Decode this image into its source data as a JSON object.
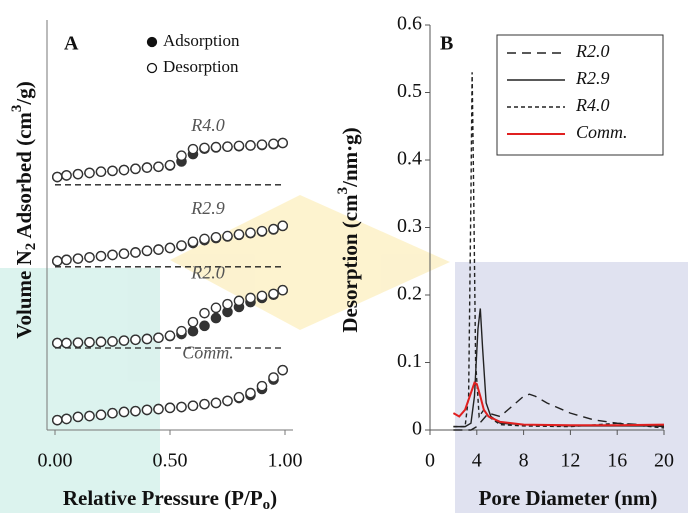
{
  "chart_data": [
    {
      "type": "scatter",
      "title": "A",
      "y_label": [
        "Volume N",
        "2",
        " Adsorbed (cm",
        "3",
        "/g)"
      ],
      "x_label": [
        "Relative Pressure (P/P",
        "o",
        ")"
      ],
      "xlim": [
        0,
        1
      ],
      "ylim": [
        0,
        100
      ],
      "xticks": [
        {
          "value": 0,
          "label": "0.00"
        },
        {
          "value": 0.5,
          "label": "0.50"
        },
        {
          "value": 1,
          "label": "1.00"
        }
      ],
      "legend": [
        "Adsorption",
        "Desorption"
      ],
      "x": [
        0.01,
        0.05,
        0.1,
        0.15,
        0.2,
        0.25,
        0.3,
        0.35,
        0.4,
        0.45,
        0.5,
        0.55,
        0.6,
        0.65,
        0.7,
        0.75,
        0.8,
        0.85,
        0.9,
        0.95,
        0.99
      ],
      "series": [
        {
          "name": "R4.0",
          "baseline": 59.8,
          "adsorption": [
            61.7,
            62.1,
            62.4,
            62.7,
            63,
            63.2,
            63.4,
            63.7,
            64,
            64.2,
            64.5,
            65.5,
            67.3,
            68.6,
            68.9,
            69.1,
            69.2,
            69.4,
            69.5,
            69.7,
            70
          ],
          "desorption": [
            61.7,
            62.1,
            62.4,
            62.7,
            63,
            63.2,
            63.4,
            63.7,
            64,
            64.2,
            64.6,
            66.9,
            68.5,
            68.8,
            69,
            69.1,
            69.3,
            69.4,
            69.6,
            69.8,
            70
          ]
        },
        {
          "name": "R2.9",
          "baseline": 39.8,
          "adsorption": [
            41.2,
            41.5,
            41.8,
            42.1,
            42.4,
            42.7,
            43,
            43.3,
            43.7,
            44,
            44.4,
            44.9,
            45.6,
            46.3,
            46.8,
            47.2,
            47.6,
            48,
            48.4,
            48.9,
            49.8
          ],
          "desorption": [
            41.2,
            41.5,
            41.8,
            42.1,
            42.4,
            42.7,
            43,
            43.3,
            43.7,
            44,
            44.4,
            45,
            45.9,
            46.6,
            47,
            47.3,
            47.7,
            48.1,
            48.5,
            49,
            49.8
          ]
        },
        {
          "name": "R2.0",
          "baseline": 20,
          "adsorption": [
            21.2,
            21.2,
            21.3,
            21.4,
            21.5,
            21.6,
            21.8,
            22,
            22.2,
            22.5,
            22.9,
            23.4,
            24.1,
            25.4,
            27.3,
            28.8,
            30,
            31.2,
            32.2,
            33,
            34.1
          ],
          "desorption": [
            21.2,
            21.2,
            21.3,
            21.4,
            21.5,
            21.6,
            21.8,
            22,
            22.2,
            22.5,
            23,
            24.1,
            26.3,
            28.5,
            29.8,
            30.7,
            31.5,
            32.2,
            32.7,
            33.2,
            34.1
          ]
        },
        {
          "name": "Comm.",
          "adsorption": [
            2.4,
            2.7,
            3.2,
            3.4,
            3.7,
            4.1,
            4.4,
            4.6,
            4.9,
            5.1,
            5.4,
            5.6,
            5.9,
            6.3,
            6.6,
            7.1,
            7.8,
            8.5,
            10,
            12.3,
            14.6
          ],
          "desorption": [
            2.4,
            2.7,
            3.2,
            3.4,
            3.7,
            4.1,
            4.4,
            4.6,
            4.9,
            5.1,
            5.4,
            5.6,
            5.9,
            6.3,
            6.6,
            7.1,
            8,
            9,
            10.7,
            12.8,
            14.6
          ]
        }
      ]
    },
    {
      "type": "line",
      "title": "B",
      "y_label": [
        "Desorption (cm",
        "3",
        "/nm·g)"
      ],
      "x_label": "Pore Diameter (nm)",
      "xlim": [
        0,
        20
      ],
      "ylim": [
        0,
        0.6
      ],
      "xticks": [
        0,
        4,
        8,
        12,
        16,
        20
      ],
      "yticks": [
        0,
        0.1,
        0.2,
        0.3,
        0.4,
        0.5,
        0.6
      ],
      "legend_position": "upper right",
      "series": [
        {
          "name": "R2.0",
          "color": "#222222",
          "dash": "9,6",
          "x": [
            2,
            3,
            3.5,
            4,
            4.5,
            5,
            6,
            7,
            8,
            8.5,
            9,
            10,
            12,
            14,
            16,
            18,
            20
          ],
          "values": [
            0,
            0,
            0,
            0.005,
            0.015,
            0.025,
            0.02,
            0.035,
            0.05,
            0.053,
            0.05,
            0.04,
            0.025,
            0.015,
            0.01,
            0.008,
            0.005
          ]
        },
        {
          "name": "R2.9",
          "color": "#222222",
          "x": [
            2,
            3,
            3.5,
            3.8,
            4.1,
            4.3,
            4.5,
            4.8,
            5.2,
            6,
            8,
            12,
            16,
            20
          ],
          "values": [
            0.005,
            0.005,
            0.01,
            0.05,
            0.15,
            0.18,
            0.12,
            0.04,
            0.02,
            0.01,
            0.008,
            0.006,
            0.006,
            0.006
          ]
        },
        {
          "name": "R4.0",
          "color": "#222222",
          "dash": "4,3",
          "x": [
            2,
            3,
            3.3,
            3.5,
            3.6,
            3.7,
            3.9,
            4.2,
            4.6,
            5,
            6,
            8,
            12,
            16,
            20
          ],
          "values": [
            0.005,
            0.005,
            0.05,
            0.35,
            0.53,
            0.4,
            0.1,
            0.02,
            0.03,
            0.02,
            0.008,
            0.006,
            0.005,
            0.01,
            0.003
          ]
        },
        {
          "name": "Comm.",
          "color": "#e02020",
          "x": [
            2,
            2.5,
            3,
            3.5,
            3.8,
            4,
            4.3,
            4.6,
            5,
            6,
            8,
            12,
            16,
            20
          ],
          "values": [
            0.025,
            0.02,
            0.03,
            0.055,
            0.07,
            0.068,
            0.05,
            0.03,
            0.02,
            0.012,
            0.008,
            0.007,
            0.007,
            0.008
          ]
        }
      ]
    }
  ]
}
